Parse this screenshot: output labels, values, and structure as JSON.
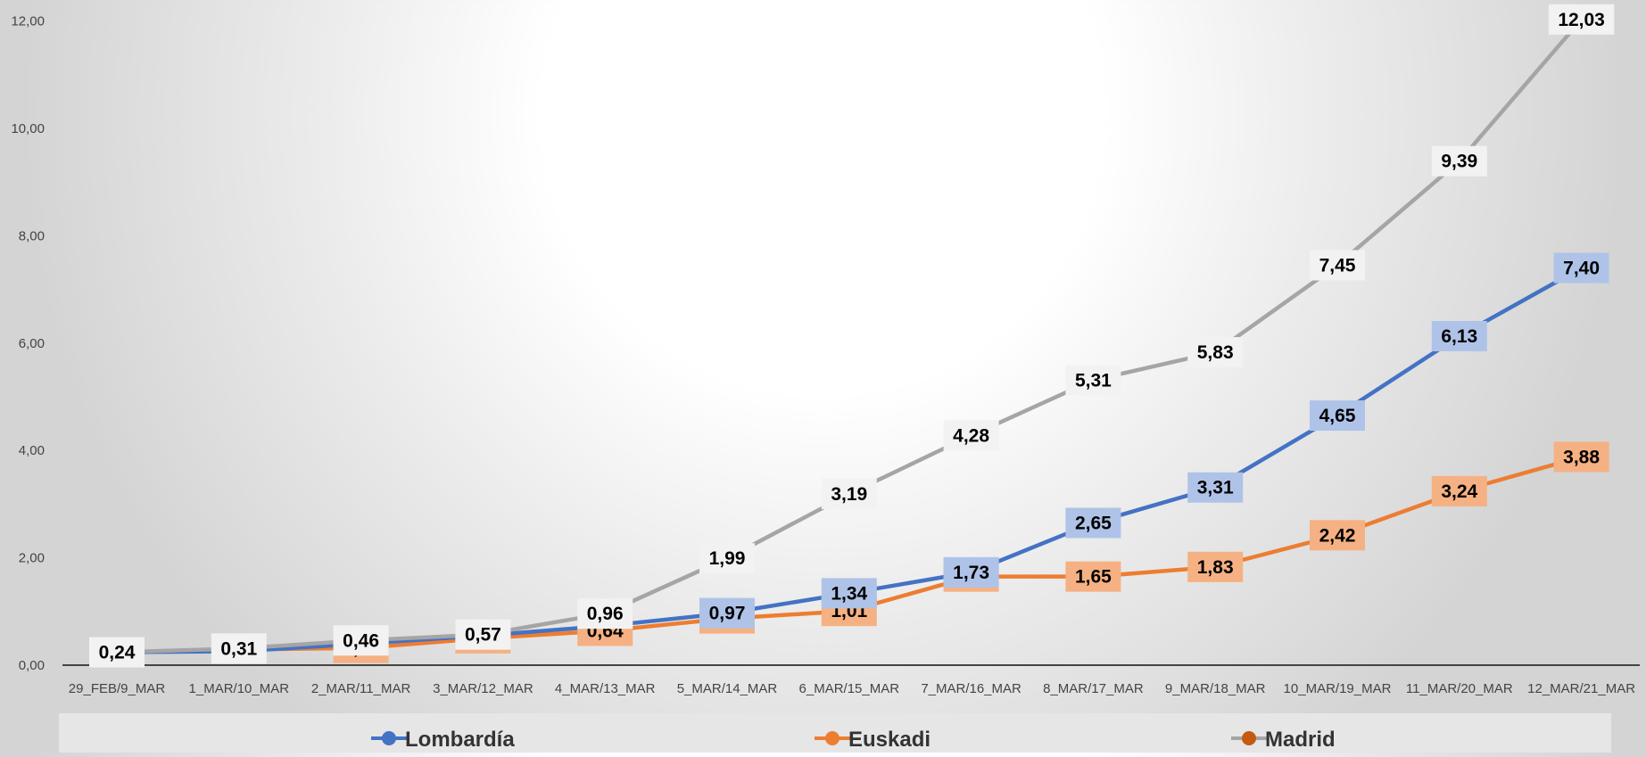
{
  "chart_data": {
    "type": "line",
    "categories": [
      "29_FEB/9_MAR",
      "1_MAR/10_MAR",
      "2_MAR/11_MAR",
      "3_MAR/12_MAR",
      "4_MAR/13_MAR",
      "5_MAR/14_MAR",
      "6_MAR/15_MAR",
      "7_MAR/16_MAR",
      "8_MAR/17_MAR",
      "9_MAR/18_MAR",
      "10_MAR/19_MAR",
      "11_MAR/20_MAR",
      "12_MAR/21_MAR"
    ],
    "yticks": [
      "0,00",
      "2,00",
      "4,00",
      "6,00",
      "8,00",
      "10,00",
      "12,00"
    ],
    "ylim": [
      0,
      12
    ],
    "grid": false,
    "legend_position": "bottom",
    "series": [
      {
        "name": "Lombardía",
        "color": "#4472C4",
        "label_bg": "#AFC3E8",
        "values": [
          0.24,
          0.26,
          0.4,
          0.55,
          0.73,
          0.97,
          1.34,
          1.73,
          2.65,
          3.31,
          4.65,
          6.13,
          7.4
        ],
        "labels": [
          "",
          "",
          "",
          "",
          "",
          "0,97",
          "1,34",
          "1,73",
          "2,65",
          "3,31",
          "4,65",
          "6,13",
          "7,40"
        ]
      },
      {
        "name": "Euskadi",
        "color": "#ED7D31",
        "label_bg": "#F5B183",
        "values": [
          0.24,
          0.29,
          0.32,
          0.5,
          0.64,
          0.87,
          1.01,
          1.65,
          1.65,
          1.83,
          2.42,
          3.24,
          3.88
        ],
        "labels": [
          "",
          "",
          "0,32",
          "0,50",
          "0,64",
          "0,87",
          "1,01",
          "1,65",
          "1,65",
          "1,83",
          "2,42",
          "3,24",
          "3,88"
        ]
      },
      {
        "name": "Madrid",
        "color": "#A5A5A5",
        "label_bg": "#F2F2F2",
        "values": [
          0.24,
          0.31,
          0.46,
          0.57,
          0.96,
          1.99,
          3.19,
          4.28,
          5.31,
          5.83,
          7.45,
          9.39,
          12.03
        ],
        "labels": [
          "0,24",
          "0,31",
          "0,46",
          "0,57",
          "0,96",
          "1,99",
          "3,19",
          "4,28",
          "5,31",
          "5,83",
          "7,45",
          "9,39",
          "12,03"
        ]
      }
    ],
    "legend": [
      {
        "name": "Lombardía",
        "color": "#4472C4"
      },
      {
        "name": "Euskadi",
        "color": "#ED7D31"
      },
      {
        "name": "Madrid",
        "color": "#A5A5A5",
        "marker_color": "#C55A11"
      }
    ]
  }
}
